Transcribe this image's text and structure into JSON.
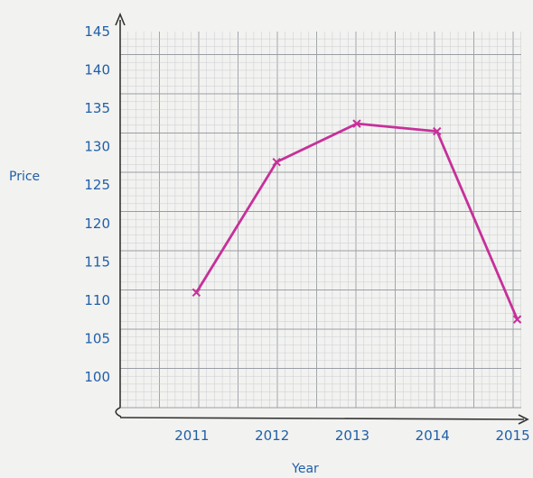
{
  "chart_data": {
    "type": "line",
    "title": "",
    "xlabel": "Year",
    "ylabel": "Price",
    "x": [
      2011,
      2012,
      2013,
      2014,
      2015
    ],
    "categories": [
      "2011",
      "2012",
      "2013",
      "2014",
      "2015"
    ],
    "series": [
      {
        "values": [
          111,
          128,
          133,
          132,
          107.5
        ]
      }
    ],
    "yticks": [
      "100",
      "105",
      "110",
      "115",
      "120",
      "125",
      "130",
      "135",
      "140",
      "145"
    ],
    "ylim": [
      96,
      145
    ],
    "xlim": [
      2010.05,
      2015.05
    ],
    "grid": true,
    "legend": "none",
    "colors": {
      "line": "#c6309a",
      "text": "#1f5fa8",
      "grid_minor": "#c9ccd0",
      "grid_major": "#9a9ea4",
      "axis": "#333333",
      "paper": "#f2f2f0"
    }
  }
}
